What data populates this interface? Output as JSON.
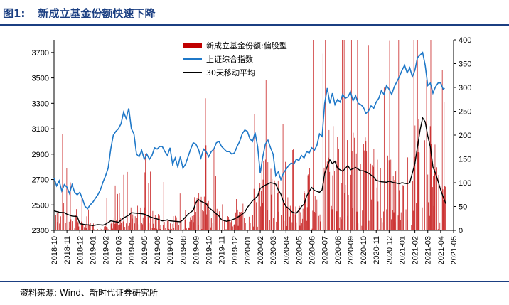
{
  "header": {
    "label": "图1:",
    "title": "新成立基金份额快速下降"
  },
  "source": "资料来源: Wind、新时代证券研究所",
  "chart_data": {
    "type": "bar+line",
    "left_axis": {
      "min": 2300,
      "max": 3800,
      "ticks": [
        "2300",
        "2500",
        "2700",
        "2900",
        "3100",
        "3300",
        "3500",
        "3700"
      ]
    },
    "right_axis": {
      "min": 0,
      "max": 400,
      "ticks": [
        "0",
        "50",
        "100",
        "150",
        "200",
        "250",
        "300",
        "350",
        "400"
      ]
    },
    "x_ticks": [
      "2018-10",
      "2018-11",
      "2018-12",
      "2019-01",
      "2019-02",
      "2019-03",
      "2019-04",
      "2019-05",
      "2019-06",
      "2019-07",
      "2019-08",
      "2019-09",
      "2019-10",
      "2019-11",
      "2019-12",
      "2020-01",
      "2020-02",
      "2020-03",
      "2020-04",
      "2020-05",
      "2020-06",
      "2020-07",
      "2020-08",
      "2020-09",
      "2020-10",
      "2020-11",
      "2020-12",
      "2021-01",
      "2021-02",
      "2021-03",
      "2021-04",
      "2021-05"
    ],
    "legend": [
      {
        "label": "新成立基金份额:偏股型",
        "color": "#c00000",
        "kind": "bar",
        "axis": "right"
      },
      {
        "label": "上证综合指数",
        "color": "#1f78c8",
        "kind": "line",
        "axis": "left"
      },
      {
        "label": "30天移动平均",
        "color": "#000000",
        "kind": "line",
        "axis": "right"
      }
    ],
    "series_index": {
      "name": "上证综合指数",
      "points": [
        [
          0,
          2710
        ],
        [
          0.2,
          2650
        ],
        [
          0.4,
          2690
        ],
        [
          0.6,
          2610
        ],
        [
          0.8,
          2660
        ],
        [
          1,
          2640
        ],
        [
          1.2,
          2590
        ],
        [
          1.4,
          2660
        ],
        [
          1.6,
          2600
        ],
        [
          1.8,
          2580
        ],
        [
          2,
          2600
        ],
        [
          2.2,
          2550
        ],
        [
          2.4,
          2490
        ],
        [
          2.6,
          2470
        ],
        [
          2.8,
          2500
        ],
        [
          3,
          2520
        ],
        [
          3.2,
          2550
        ],
        [
          3.4,
          2580
        ],
        [
          3.6,
          2620
        ],
        [
          3.8,
          2680
        ],
        [
          4,
          2730
        ],
        [
          4.2,
          2790
        ],
        [
          4.4,
          2940
        ],
        [
          4.6,
          3050
        ],
        [
          4.8,
          3080
        ],
        [
          5,
          3100
        ],
        [
          5.2,
          3140
        ],
        [
          5.4,
          3230
        ],
        [
          5.6,
          3180
        ],
        [
          5.8,
          3260
        ],
        [
          6,
          3100
        ],
        [
          6.2,
          3060
        ],
        [
          6.4,
          2900
        ],
        [
          6.6,
          2880
        ],
        [
          6.8,
          2930
        ],
        [
          7,
          2860
        ],
        [
          7.2,
          2900
        ],
        [
          7.4,
          2860
        ],
        [
          7.6,
          2890
        ],
        [
          7.8,
          2950
        ],
        [
          8,
          2940
        ],
        [
          8.2,
          2960
        ],
        [
          8.4,
          2960
        ],
        [
          8.6,
          2920
        ],
        [
          8.8,
          2890
        ],
        [
          9,
          2950
        ],
        [
          9.2,
          2820
        ],
        [
          9.4,
          2870
        ],
        [
          9.6,
          2800
        ],
        [
          9.8,
          2880
        ],
        [
          10,
          2790
        ],
        [
          10.2,
          2820
        ],
        [
          10.4,
          2880
        ],
        [
          10.6,
          2940
        ],
        [
          10.8,
          2990
        ],
        [
          11,
          2980
        ],
        [
          11.2,
          2940
        ],
        [
          11.4,
          2870
        ],
        [
          11.6,
          2940
        ],
        [
          11.8,
          2920
        ],
        [
          12,
          2880
        ],
        [
          12.2,
          2920
        ],
        [
          12.4,
          2940
        ],
        [
          12.6,
          2990
        ],
        [
          12.8,
          3000
        ],
        [
          13,
          2960
        ],
        [
          13.2,
          2940
        ],
        [
          13.4,
          2920
        ],
        [
          13.6,
          2920
        ],
        [
          13.8,
          2900
        ],
        [
          14,
          2910
        ],
        [
          14.2,
          2960
        ],
        [
          14.4,
          3000
        ],
        [
          14.6,
          3060
        ],
        [
          14.8,
          3090
        ],
        [
          15,
          3080
        ],
        [
          15.2,
          3020
        ],
        [
          15.4,
          3000
        ],
        [
          15.6,
          3070
        ],
        [
          15.8,
          2960
        ],
        [
          16,
          2750
        ],
        [
          16.2,
          2880
        ],
        [
          16.4,
          2980
        ],
        [
          16.6,
          3010
        ],
        [
          16.8,
          2950
        ],
        [
          17,
          2900
        ],
        [
          17.2,
          2730
        ],
        [
          17.4,
          2760
        ],
        [
          17.6,
          2700
        ],
        [
          17.8,
          2750
        ],
        [
          18,
          2780
        ],
        [
          18.2,
          2810
        ],
        [
          18.4,
          2830
        ],
        [
          18.6,
          2820
        ],
        [
          18.8,
          2860
        ],
        [
          19,
          2850
        ],
        [
          19.2,
          2890
        ],
        [
          19.4,
          2870
        ],
        [
          19.6,
          2920
        ],
        [
          19.8,
          2910
        ],
        [
          20,
          2950
        ],
        [
          20.2,
          2930
        ],
        [
          20.4,
          2970
        ],
        [
          20.6,
          3060
        ],
        [
          20.8,
          3040
        ],
        [
          21,
          3300
        ],
        [
          21.2,
          3420
        ],
        [
          21.4,
          3300
        ],
        [
          21.6,
          3380
        ],
        [
          21.8,
          3290
        ],
        [
          22,
          3330
        ],
        [
          22.2,
          3310
        ],
        [
          22.4,
          3370
        ],
        [
          22.6,
          3340
        ],
        [
          22.8,
          3350
        ],
        [
          23,
          3390
        ],
        [
          23.2,
          3320
        ],
        [
          23.4,
          3360
        ],
        [
          23.6,
          3300
        ],
        [
          23.8,
          3290
        ],
        [
          24,
          3270
        ],
        [
          24.2,
          3220
        ],
        [
          24.4,
          3240
        ],
        [
          24.6,
          3280
        ],
        [
          24.8,
          3260
        ],
        [
          25,
          3310
        ],
        [
          25.2,
          3340
        ],
        [
          25.4,
          3400
        ],
        [
          25.6,
          3370
        ],
        [
          25.8,
          3440
        ],
        [
          26,
          3410
        ],
        [
          26.2,
          3370
        ],
        [
          26.4,
          3430
        ],
        [
          26.6,
          3470
        ],
        [
          26.8,
          3510
        ],
        [
          27,
          3560
        ],
        [
          27.2,
          3600
        ],
        [
          27.4,
          3540
        ],
        [
          27.6,
          3580
        ],
        [
          27.8,
          3510
        ],
        [
          28,
          3560
        ],
        [
          28.2,
          3660
        ],
        [
          28.4,
          3680
        ],
        [
          28.6,
          3700
        ],
        [
          28.8,
          3600
        ],
        [
          29,
          3440
        ],
        [
          29.2,
          3460
        ],
        [
          29.4,
          3380
        ],
        [
          29.6,
          3430
        ],
        [
          29.8,
          3460
        ],
        [
          30,
          3460
        ],
        [
          30.2,
          3410
        ],
        [
          30.3,
          3420
        ]
      ]
    },
    "series_ma": {
      "name": "30天移动平均",
      "points": [
        [
          0,
          41
        ],
        [
          0.4,
          38
        ],
        [
          0.8,
          37
        ],
        [
          1,
          34
        ],
        [
          1.4,
          30
        ],
        [
          1.8,
          29
        ],
        [
          2,
          14
        ],
        [
          2.4,
          12
        ],
        [
          2.8,
          11
        ],
        [
          3,
          10
        ],
        [
          3.4,
          12
        ],
        [
          3.8,
          11
        ],
        [
          4,
          13
        ],
        [
          4.4,
          20
        ],
        [
          4.8,
          18
        ],
        [
          5,
          17
        ],
        [
          5.4,
          26
        ],
        [
          5.8,
          32
        ],
        [
          6,
          37
        ],
        [
          6.4,
          36
        ],
        [
          6.8,
          35
        ],
        [
          7,
          34
        ],
        [
          7.4,
          29
        ],
        [
          7.8,
          25
        ],
        [
          8,
          24
        ],
        [
          8.4,
          20
        ],
        [
          8.8,
          22
        ],
        [
          9,
          20
        ],
        [
          9.4,
          19
        ],
        [
          9.8,
          18
        ],
        [
          10,
          22
        ],
        [
          10.4,
          34
        ],
        [
          10.8,
          42
        ],
        [
          11,
          58
        ],
        [
          11.2,
          65
        ],
        [
          11.4,
          61
        ],
        [
          11.8,
          56
        ],
        [
          12,
          48
        ],
        [
          12.4,
          39
        ],
        [
          12.8,
          30
        ],
        [
          13,
          22
        ],
        [
          13.4,
          19
        ],
        [
          13.8,
          22
        ],
        [
          14,
          24
        ],
        [
          14.4,
          30
        ],
        [
          14.8,
          38
        ],
        [
          15,
          48
        ],
        [
          15.4,
          62
        ],
        [
          15.8,
          72
        ],
        [
          16,
          88
        ],
        [
          16.4,
          95
        ],
        [
          16.8,
          100
        ],
        [
          17,
          99
        ],
        [
          17.2,
          97
        ],
        [
          17.4,
          85
        ],
        [
          17.6,
          76
        ],
        [
          17.8,
          60
        ],
        [
          18,
          50
        ],
        [
          18.2,
          46
        ],
        [
          18.4,
          40
        ],
        [
          18.6,
          37
        ],
        [
          18.8,
          36
        ],
        [
          19,
          42
        ],
        [
          19.2,
          50
        ],
        [
          19.4,
          55
        ],
        [
          19.6,
          72
        ],
        [
          19.8,
          82
        ],
        [
          20,
          90
        ],
        [
          20.2,
          84
        ],
        [
          20.6,
          80
        ],
        [
          20.8,
          85
        ],
        [
          21,
          120
        ],
        [
          21.4,
          148
        ],
        [
          21.6,
          140
        ],
        [
          21.8,
          145
        ],
        [
          22,
          130
        ],
        [
          22.4,
          124
        ],
        [
          22.8,
          136
        ],
        [
          23,
          127
        ],
        [
          23.4,
          132
        ],
        [
          23.8,
          125
        ],
        [
          24,
          125
        ],
        [
          24.4,
          120
        ],
        [
          24.8,
          112
        ],
        [
          25,
          105
        ],
        [
          25.4,
          102
        ],
        [
          25.8,
          101
        ],
        [
          26,
          103
        ],
        [
          26.4,
          100
        ],
        [
          26.8,
          98
        ],
        [
          27,
          100
        ],
        [
          27.4,
          98
        ],
        [
          27.6,
          100
        ],
        [
          27.8,
          120
        ],
        [
          28,
          140
        ],
        [
          28.2,
          175
        ],
        [
          28.4,
          210
        ],
        [
          28.6,
          236
        ],
        [
          28.8,
          228
        ],
        [
          29,
          198
        ],
        [
          29.2,
          175
        ],
        [
          29.4,
          133
        ],
        [
          29.6,
          120
        ],
        [
          29.8,
          103
        ],
        [
          30,
          85
        ],
        [
          30.2,
          70
        ],
        [
          30.4,
          56
        ]
      ]
    },
    "series_bars_note": "daily new equity fund shares, right axis"
  }
}
